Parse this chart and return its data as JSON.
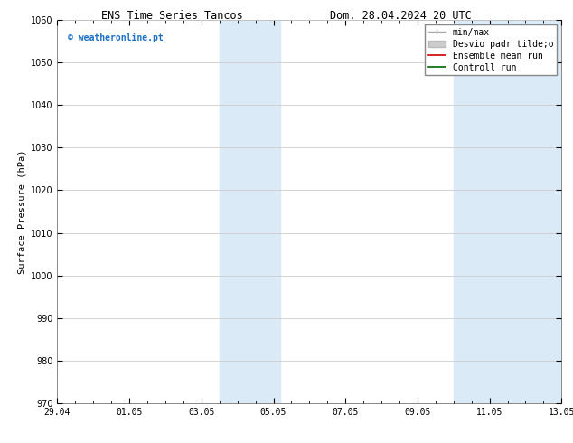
{
  "title_left": "ENS Time Series Tancos",
  "title_right": "Dom. 28.04.2024 20 UTC",
  "ylabel": "Surface Pressure (hPa)",
  "ylim": [
    970,
    1060
  ],
  "yticks": [
    970,
    980,
    990,
    1000,
    1010,
    1020,
    1030,
    1040,
    1050,
    1060
  ],
  "xtick_labels": [
    "29.04",
    "01.05",
    "03.05",
    "05.05",
    "07.05",
    "09.05",
    "11.05",
    "13.05"
  ],
  "xtick_positions": [
    0,
    2,
    4,
    6,
    8,
    10,
    12,
    14
  ],
  "xlim": [
    0,
    14
  ],
  "shaded_bands": [
    {
      "x_start": 4.5,
      "x_end": 6.2
    },
    {
      "x_start": 11.0,
      "x_end": 14.0
    }
  ],
  "shaded_color": "#daeaf7",
  "watermark_text": "© weatheronline.pt",
  "watermark_color": "#1a6fc4",
  "bg_color": "#ffffff",
  "grid_color": "#cccccc",
  "title_fontsize": 8.5,
  "label_fontsize": 7.5,
  "tick_fontsize": 7,
  "legend_fontsize": 7,
  "spine_color": "#888888"
}
